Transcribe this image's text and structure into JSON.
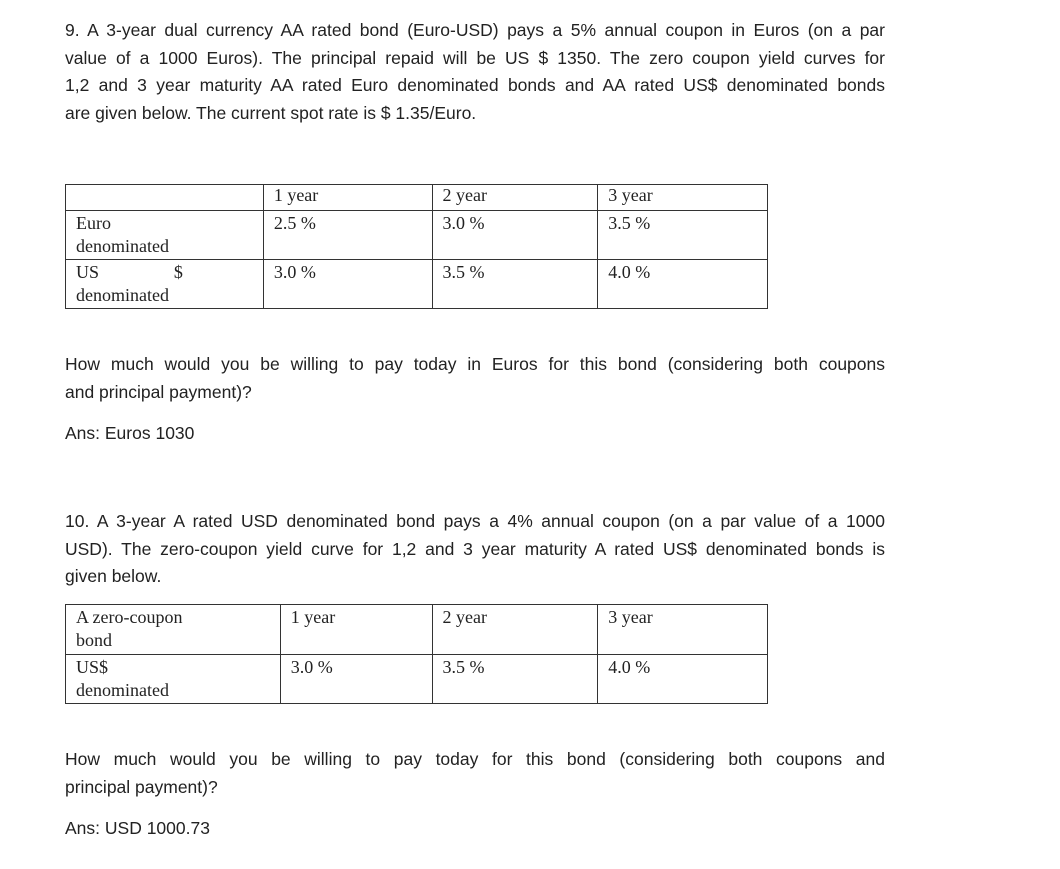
{
  "q9": {
    "lines": [
      "9. A 3-year dual currency AA rated bond (Euro-USD) pays a 5% annual coupon in Euros (on a par",
      "value of a 1000 Euros). The principal repaid will be US $ 1350. The zero coupon yield curves for",
      "1,2 and 3 year maturity AA rated Euro denominated bonds and AA rated US$ denominated bonds",
      "are given below. The current spot rate is $ 1.35/Euro."
    ],
    "table": {
      "headers": [
        "",
        "1 year",
        "2 year",
        "3 year"
      ],
      "rows": [
        {
          "label_1": "Euro",
          "label_2": "denominated",
          "values": [
            "2.5 %",
            "3.0 %",
            "3.5 %"
          ]
        },
        {
          "label_1a": "US",
          "label_1b": "$",
          "label_2": "denominated",
          "values": [
            "3.0 %",
            "3.5 %",
            "4.0 %"
          ]
        }
      ]
    },
    "question_lines": [
      "How much would you be willing to pay today in Euros for this bond (considering both coupons",
      "and principal payment)?"
    ],
    "answer": "Ans: Euros 1030"
  },
  "q10": {
    "lines": [
      "10. A 3-year A rated USD denominated bond pays a 4% annual coupon (on a par value of a 1000",
      "USD). The zero-coupon yield curve for 1,2 and 3 year maturity A rated US$ denominated bonds is",
      "given below."
    ],
    "table": {
      "header_label_1": "A zero-coupon",
      "header_label_2": "bond",
      "headers": [
        "1 year",
        "2 year",
        "3 year"
      ],
      "row_label_1": "US$",
      "row_label_2": "denominated",
      "values": [
        "3.0 %",
        "3.5 %",
        "4.0 %"
      ]
    },
    "question_lines": [
      "How much would you be willing to pay today for this bond (considering both coupons and",
      "principal payment)?"
    ],
    "answer": "Ans: USD 1000.73"
  }
}
